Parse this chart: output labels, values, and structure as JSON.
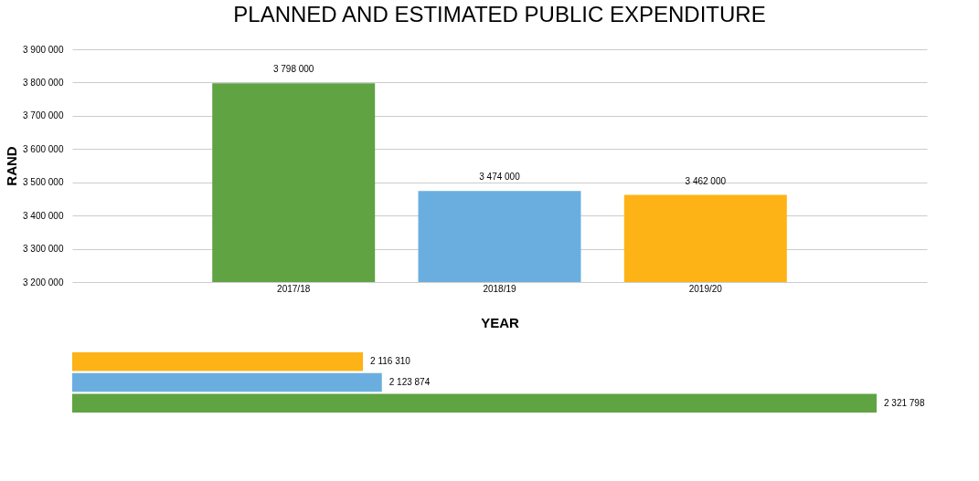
{
  "chart_data": [
    {
      "type": "bar",
      "title": "PLANNED AND ESTIMATED PUBLIC EXPENDITURE",
      "xlabel": "YEAR",
      "ylabel": "RAND",
      "categories": [
        "2017/18",
        "2018/19",
        "2019/20"
      ],
      "values": [
        3798000,
        3474000,
        3462000
      ],
      "colors": [
        "#5fa343",
        "#6aaee0",
        "#fdb316"
      ],
      "ylim": [
        3200000,
        3900000
      ],
      "yticks": [
        3200000,
        3300000,
        3400000,
        3500000,
        3600000,
        3700000,
        3800000,
        3900000
      ],
      "grid": "y",
      "data_labels": true
    },
    {
      "type": "bar",
      "orientation": "horizontal",
      "categories": [
        null,
        null,
        null
      ],
      "values": [
        2116310,
        2123874,
        2321798
      ],
      "colors": [
        "#fdb316",
        "#6aaee0",
        "#5fa343"
      ],
      "xlim": [
        2000000,
        2321798
      ],
      "tick_labels": false,
      "data_labels": true
    }
  ]
}
